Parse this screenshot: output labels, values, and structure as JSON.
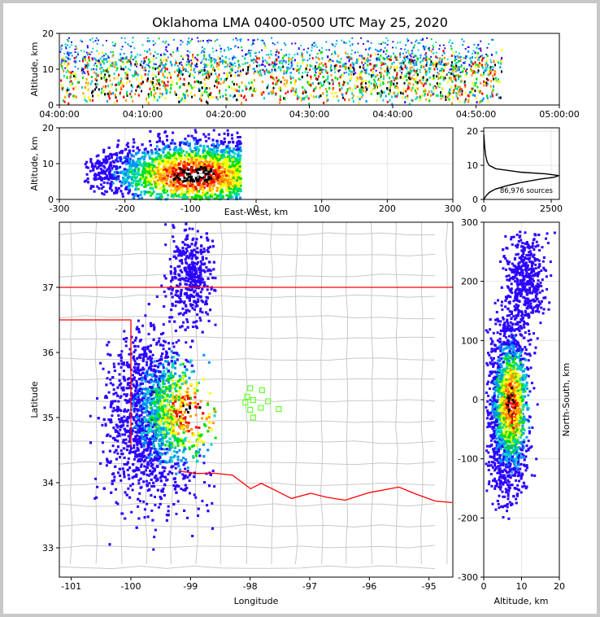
{
  "title": "Oklahoma LMA 0400-0500 UTC May 25, 2020",
  "colors": {
    "background": "#ffffff",
    "border": "#c8c8c8",
    "state_border": "#ff0000",
    "county_lines": "#c8c8c8",
    "stations": "#66ff33",
    "density_ramp": [
      "#2a00ff",
      "#0090ff",
      "#00d7c0",
      "#00e000",
      "#ffff00",
      "#ff9900",
      "#ff0000",
      "#000000",
      "#ffffff"
    ]
  },
  "chart_data": [
    {
      "panel": "time-altitude",
      "type": "heatmap",
      "xlabel": "",
      "ylabel": "Altitude, km",
      "xticks": [
        "04:00:00",
        "04:10:00",
        "04:20:00",
        "04:30:00",
        "04:40:00",
        "04:50:00",
        "05:00:00"
      ],
      "xlim_minutes": [
        0,
        60
      ],
      "ylim": [
        0,
        20
      ],
      "yticks": [
        0,
        10,
        20
      ],
      "dense_spans_minutes": [
        [
          0,
          36
        ],
        [
          36,
          40
        ],
        [
          40,
          53
        ]
      ],
      "altitude_band_km": [
        2,
        14
      ]
    },
    {
      "panel": "east-west-altitude",
      "type": "heatmap",
      "xlabel": "East-West, km",
      "ylabel": "Altitude, km",
      "xlim": [
        -300,
        300
      ],
      "xticks": [
        -300,
        -200,
        -100,
        0,
        100,
        200,
        300
      ],
      "ylim": [
        0,
        20
      ],
      "yticks": [
        0,
        10,
        20
      ],
      "core_km": {
        "x": -95,
        "altitude": 7
      }
    },
    {
      "panel": "altitude-histogram",
      "type": "line",
      "xlim": [
        0,
        2800
      ],
      "xticks": [
        0,
        2500
      ],
      "ylim": [
        0,
        21
      ],
      "yticks": [
        0,
        10,
        20
      ],
      "annotation": "86,976 sources",
      "altitude_km": [
        0,
        1,
        2,
        3,
        4,
        5,
        6,
        6.5,
        7,
        7.5,
        8,
        9,
        10,
        11,
        12,
        13,
        14,
        15,
        16,
        17,
        18,
        19
      ],
      "sources": [
        0,
        80,
        200,
        420,
        850,
        1400,
        2100,
        2600,
        2780,
        2300,
        1350,
        450,
        200,
        130,
        95,
        70,
        55,
        40,
        30,
        20,
        12,
        5
      ]
    },
    {
      "panel": "plan-view",
      "type": "heatmap",
      "xlabel": "Longitude",
      "ylabel": "Latitude",
      "xlim": [
        -101.2,
        -94.6
      ],
      "xticks": [
        -101,
        -100,
        -99,
        -98,
        -97,
        -96,
        -95
      ],
      "ylim": [
        32.55,
        38.0
      ],
      "yticks": [
        33,
        34,
        35,
        36,
        37
      ],
      "core_lonlat": [
        -99.0,
        35.1
      ],
      "stations_lonlat": [
        [
          -98.0,
          35.45
        ],
        [
          -97.8,
          35.42
        ],
        [
          -98.05,
          35.32
        ],
        [
          -97.95,
          35.27
        ],
        [
          -97.7,
          35.25
        ],
        [
          -98.08,
          35.23
        ],
        [
          -97.82,
          35.15
        ],
        [
          -97.52,
          35.13
        ],
        [
          -98.0,
          35.12
        ],
        [
          -97.95,
          35.0
        ]
      ]
    },
    {
      "panel": "altitude-north-south",
      "type": "heatmap",
      "xlabel": "Altitude, km",
      "ylabel": "North-South, km",
      "xlim": [
        0,
        20
      ],
      "xticks": [
        0,
        10,
        20
      ],
      "ylim": [
        -300,
        300
      ],
      "yticks": [
        -300,
        -200,
        -100,
        0,
        100,
        200,
        300
      ],
      "core_km": {
        "altitude": 7,
        "y": -5
      }
    }
  ]
}
